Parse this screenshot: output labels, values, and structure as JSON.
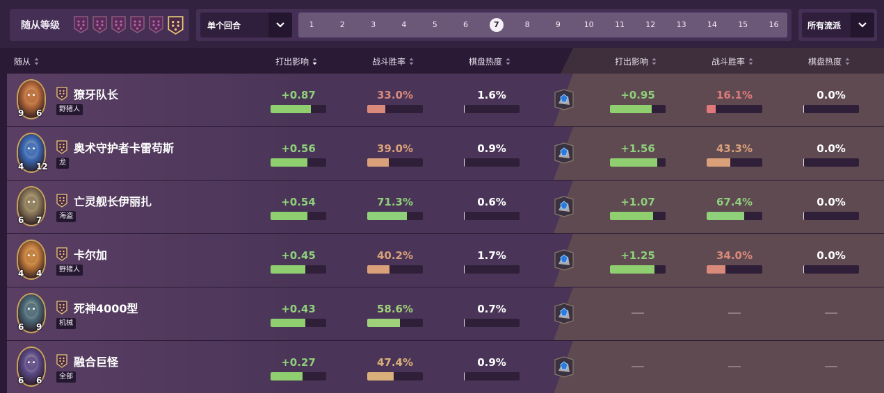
{
  "filters": {
    "tier_label": "随从等级",
    "tiers": [
      {
        "name": "tier-1",
        "selected": false
      },
      {
        "name": "tier-2",
        "selected": false
      },
      {
        "name": "tier-3",
        "selected": false
      },
      {
        "name": "tier-4",
        "selected": false
      },
      {
        "name": "tier-5",
        "selected": false
      },
      {
        "name": "tier-6",
        "selected": true
      }
    ],
    "mode_label": "单个回合",
    "turns": [
      "1",
      "2",
      "3",
      "4",
      "5",
      "6",
      "7",
      "8",
      "9",
      "10",
      "11",
      "12",
      "13",
      "14",
      "15",
      "16"
    ],
    "selected_turn": "7",
    "archetype_label": "所有流派"
  },
  "table": {
    "headers": {
      "minion": "随从",
      "impact": "打出影响",
      "winrate": "战斗胜率",
      "popularity": "棋盘热度",
      "impact2": "打出影响",
      "winrate2": "战斗胜率",
      "popularity2": "棋盘热度"
    },
    "rows": [
      {
        "name": "獠牙队长",
        "tribe": "野猪人",
        "attack": "9",
        "health": "6",
        "impact": "+0.87",
        "impact_frac": 0.72,
        "winrate": "33.0%",
        "winrate_frac": 0.33,
        "winrate_color": "#d98a7a",
        "popularity": "1.6%",
        "popularity_frac": 0.0,
        "impact2": "+0.95",
        "impact2_frac": 0.75,
        "winrate2": "16.1%",
        "winrate2_frac": 0.16,
        "winrate2_color": "#e07a7a",
        "popularity2": "0.0%",
        "popularity2_frac": 0.0,
        "portrait_color": "#b86a3a"
      },
      {
        "name": "奥术守护者卡雷苟斯",
        "tribe": "龙",
        "attack": "4",
        "health": "12",
        "impact": "+0.56",
        "impact_frac": 0.66,
        "winrate": "39.0%",
        "winrate_frac": 0.39,
        "winrate_color": "#d9a07a",
        "popularity": "0.9%",
        "popularity_frac": 0.0,
        "impact2": "+1.56",
        "impact2_frac": 0.85,
        "winrate2": "43.3%",
        "winrate2_frac": 0.43,
        "winrate2_color": "#d9a07a",
        "popularity2": "0.0%",
        "popularity2_frac": 0.0,
        "portrait_color": "#3a6ab8"
      },
      {
        "name": "亡灵舰长伊丽扎",
        "tribe": "海盗",
        "attack": "6",
        "health": "7",
        "impact": "+0.54",
        "impact_frac": 0.66,
        "winrate": "71.3%",
        "winrate_frac": 0.71,
        "winrate_color": "#8fd07a",
        "popularity": "0.6%",
        "popularity_frac": 0.0,
        "impact2": "+1.07",
        "impact2_frac": 0.78,
        "winrate2": "67.4%",
        "winrate2_frac": 0.67,
        "winrate2_color": "#8fd07a",
        "popularity2": "0.0%",
        "popularity2_frac": 0.0,
        "portrait_color": "#8a7a5a"
      },
      {
        "name": "卡尔加",
        "tribe": "野猪人",
        "attack": "4",
        "health": "4",
        "impact": "+0.45",
        "impact_frac": 0.63,
        "winrate": "40.2%",
        "winrate_frac": 0.4,
        "winrate_color": "#d9a07a",
        "popularity": "1.7%",
        "popularity_frac": 0.0,
        "impact2": "+1.25",
        "impact2_frac": 0.8,
        "winrate2": "34.0%",
        "winrate2_frac": 0.34,
        "winrate2_color": "#d98a7a",
        "popularity2": "0.0%",
        "popularity2_frac": 0.0,
        "portrait_color": "#c07a3a"
      },
      {
        "name": "死神4000型",
        "tribe": "机械",
        "attack": "6",
        "health": "9",
        "impact": "+0.43",
        "impact_frac": 0.62,
        "winrate": "58.6%",
        "winrate_frac": 0.59,
        "winrate_color": "#9fd07a",
        "popularity": "0.7%",
        "popularity_frac": 0.0,
        "impact2": "—",
        "winrate2": "—",
        "popularity2": "—",
        "portrait_color": "#4a6a7a"
      },
      {
        "name": "融合巨怪",
        "tribe": "全部",
        "attack": "6",
        "health": "6",
        "impact": "+0.27",
        "impact_frac": 0.58,
        "winrate": "47.4%",
        "winrate_frac": 0.47,
        "winrate_color": "#d9b07a",
        "popularity": "0.9%",
        "popularity_frac": 0.0,
        "impact2": "—",
        "winrate2": "—",
        "popularity2": "—",
        "portrait_color": "#5a4a8a"
      }
    ]
  },
  "colors": {
    "impact_green": "#8fd07a",
    "impact_bar": "#8fcf6f",
    "tier_gold": "#c9a35a",
    "tier_purple": "#7a2a6a"
  }
}
